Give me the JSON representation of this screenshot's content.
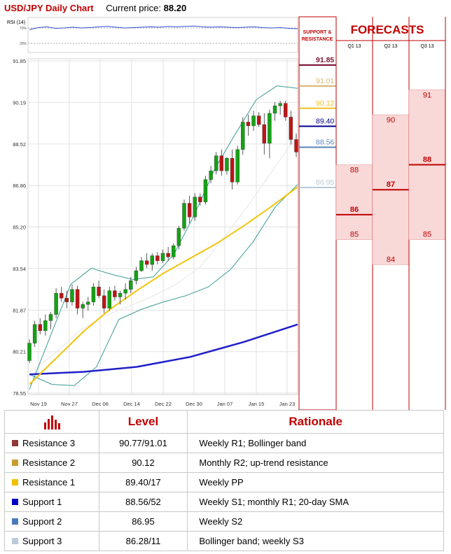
{
  "header": {
    "title": "USD/JPY Daily Chart",
    "price_label": "Current price:",
    "price_value": "88.20"
  },
  "chart_data": [
    {
      "type": "candlestick",
      "title": "USD/JPY Daily Chart",
      "y_ticks": [
        "91.85",
        "90.19",
        "88.52",
        "86.86",
        "85.20",
        "83.54",
        "81.87",
        "80.21",
        "78.55"
      ],
      "ylim": [
        78.55,
        91.85
      ],
      "x_ticks": [
        "Nov 19",
        "Nov 27",
        "Dec 06",
        "Dec 14",
        "Dec 22",
        "Dec 30",
        "Jan 07",
        "Jan 15",
        "Jan 23"
      ],
      "grid": true,
      "ohlc": [
        [
          79.85,
          80.7,
          79.75,
          80.55
        ],
        [
          80.55,
          81.45,
          80.4,
          81.3
        ],
        [
          81.3,
          81.55,
          80.9,
          81.05
        ],
        [
          81.05,
          81.7,
          80.85,
          81.45
        ],
        [
          81.45,
          81.8,
          81.1,
          81.7
        ],
        [
          81.7,
          82.75,
          81.55,
          82.55
        ],
        [
          82.55,
          82.8,
          82.2,
          82.35
        ],
        [
          82.35,
          82.65,
          81.95,
          82.2
        ],
        [
          82.2,
          82.9,
          82.05,
          82.7
        ],
        [
          82.7,
          82.85,
          81.7,
          81.95
        ],
        [
          81.95,
          82.2,
          81.55,
          82.1
        ],
        [
          82.1,
          82.4,
          81.85,
          82.2
        ],
        [
          82.2,
          82.95,
          82.05,
          82.8
        ],
        [
          82.8,
          83.05,
          82.35,
          82.45
        ],
        [
          82.45,
          82.7,
          81.75,
          81.95
        ],
        [
          81.95,
          82.8,
          81.85,
          82.65
        ],
        [
          82.65,
          82.85,
          82.25,
          82.4
        ],
        [
          82.4,
          82.65,
          82.1,
          82.55
        ],
        [
          82.55,
          82.95,
          82.3,
          82.7
        ],
        [
          82.7,
          83.2,
          82.55,
          83.05
        ],
        [
          83.05,
          83.6,
          82.9,
          83.45
        ],
        [
          83.45,
          84.0,
          83.4,
          83.85
        ],
        [
          83.85,
          84.15,
          83.55,
          83.7
        ],
        [
          83.7,
          84.15,
          83.45,
          84.05
        ],
        [
          84.05,
          84.2,
          83.7,
          83.85
        ],
        [
          83.85,
          84.3,
          83.75,
          84.15
        ],
        [
          84.15,
          84.4,
          83.85,
          84.0
        ],
        [
          84.0,
          84.55,
          83.9,
          84.45
        ],
        [
          84.45,
          85.25,
          84.3,
          85.15
        ],
        [
          85.15,
          86.3,
          85.05,
          86.15
        ],
        [
          86.15,
          86.45,
          85.35,
          85.6
        ],
        [
          85.6,
          86.55,
          85.45,
          86.4
        ],
        [
          86.4,
          86.55,
          86.05,
          86.2
        ],
        [
          86.2,
          87.25,
          86.1,
          87.1
        ],
        [
          87.1,
          87.65,
          86.95,
          87.45
        ],
        [
          87.45,
          88.2,
          87.3,
          88.05
        ],
        [
          88.05,
          88.3,
          87.25,
          87.45
        ],
        [
          87.45,
          88.0,
          87.3,
          87.95
        ],
        [
          87.95,
          88.3,
          86.7,
          87.0
        ],
        [
          87.0,
          88.45,
          86.9,
          88.3
        ],
        [
          88.3,
          89.6,
          88.1,
          89.4
        ],
        [
          89.4,
          89.7,
          88.85,
          89.25
        ],
        [
          89.25,
          89.85,
          89.05,
          89.65
        ],
        [
          89.65,
          89.8,
          89.2,
          89.3
        ],
        [
          89.3,
          89.75,
          88.1,
          88.55
        ],
        [
          88.55,
          89.9,
          87.95,
          89.75
        ],
        [
          89.75,
          90.2,
          89.45,
          90.05
        ],
        [
          90.05,
          90.25,
          89.7,
          90.15
        ],
        [
          90.15,
          90.25,
          89.45,
          89.6
        ],
        [
          89.6,
          89.85,
          88.5,
          88.7
        ],
        [
          88.7,
          88.95,
          88.0,
          88.2
        ]
      ],
      "sma_fast": [
        78.9,
        79.95,
        81.0,
        81.9,
        82.65,
        83.35,
        83.95,
        84.55,
        85.25,
        86.0,
        86.8
      ],
      "sma_slow": [
        79.3,
        79.35,
        79.4,
        79.5,
        79.6,
        79.8,
        80.0,
        80.3,
        80.6,
        80.95,
        81.3
      ],
      "bollinger_upper": [
        78.7,
        80.8,
        82.9,
        83.55,
        83.3,
        83.1,
        83.2,
        84.1,
        85.7,
        87.55,
        88.95,
        90.3,
        90.85,
        90.75
      ],
      "bollinger_lower": [
        79.3,
        78.9,
        78.85,
        79.6,
        81.5,
        81.9,
        82.2,
        82.45,
        82.8,
        83.5,
        84.6,
        86.0,
        86.9
      ],
      "bollinger_mid": [
        79.4,
        80.1,
        81.0,
        81.6,
        82.0,
        82.4,
        82.9,
        83.6,
        84.8,
        86.1,
        87.5,
        88.9
      ]
    },
    {
      "type": "line",
      "title": "RSI (14)",
      "y_ticks": [
        "70%",
        "30%"
      ],
      "values": [
        66,
        71,
        73,
        69,
        70,
        72,
        70,
        71,
        73,
        74,
        72,
        70,
        71,
        72,
        73,
        72,
        74,
        73,
        74,
        75,
        73,
        72,
        73,
        72,
        71,
        72,
        73,
        71,
        70,
        71,
        69,
        68
      ]
    }
  ],
  "levels_panel": {
    "title_lines": [
      "SUPPORT &",
      "RESISTANCE"
    ],
    "levels": [
      {
        "label": "91.85",
        "value": 91.85,
        "color": "#7a1030",
        "style": "solid"
      },
      {
        "label": "91.01",
        "value": 91.01,
        "color": "#d8b870",
        "style": "solid"
      },
      {
        "label": "90.12",
        "value": 90.12,
        "color": "#f0c020",
        "style": "solid"
      },
      {
        "label": "89.40",
        "value": 89.4,
        "color": "#00008c",
        "style": "solid"
      },
      {
        "label": "88.56",
        "value": 88.56,
        "color": "#5a86b8",
        "style": "solid"
      },
      {
        "label": "86.95",
        "value": 86.95,
        "color": "#b8cad8",
        "style": "solid"
      }
    ]
  },
  "forecasts": {
    "title": "FORECASTS",
    "columns": [
      {
        "label": "Q1 13",
        "high": 88,
        "mid": 86,
        "low": 85
      },
      {
        "label": "Q2 13",
        "high": 90,
        "mid": 87,
        "low": 84
      },
      {
        "label": "Q3 13",
        "high": 91,
        "mid": 88,
        "low": 85
      }
    ]
  },
  "table": {
    "icon": "bar-chart-icon",
    "headers": {
      "level": "Level",
      "rationale": "Rationale"
    },
    "rows": [
      {
        "name": "Resistance 3",
        "level": "90.77/91.01",
        "rationale": "Weekly R1; Bollinger band",
        "color": "#8c3a3a"
      },
      {
        "name": "Resistance 2",
        "level": "90.12",
        "rationale": "Monthly R2; up-trend resistance",
        "color": "#c89c2c"
      },
      {
        "name": "Resistance 1",
        "level": "89.40/17",
        "rationale": "Weekly PP",
        "color": "#f0c000"
      },
      {
        "name": "Support 1",
        "level": "88.56/52",
        "rationale": "Weekly S1; monthly R1; 20-day SMA",
        "color": "#0000c8"
      },
      {
        "name": "Support 2",
        "level": "86.95",
        "rationale": "Weekly S2",
        "color": "#4a7ab8"
      },
      {
        "name": "Support 3",
        "level": "86.28/11",
        "rationale": "Bollinger band; weekly S3",
        "color": "#bccada"
      }
    ]
  }
}
